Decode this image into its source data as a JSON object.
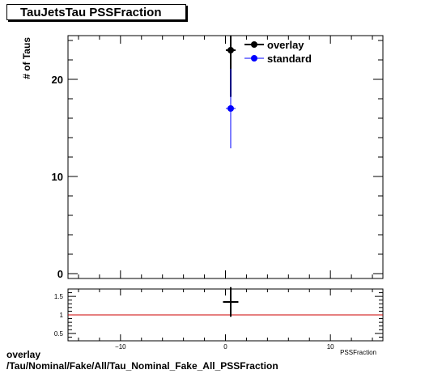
{
  "title": "TauJetsTau PSSFraction",
  "footer": {
    "line1": "overlay",
    "line2": "/Tau/Nominal/Fake/All/Tau_Nominal_Fake_All_PSSFraction"
  },
  "colors": {
    "overlay": "#000000",
    "standard": "#0000ff",
    "ratio_line": "#cc0000"
  },
  "chart_data": [
    {
      "type": "scatter",
      "title": "TauJetsTau PSSFraction",
      "ylabel": "# of Taus",
      "xlabel": "PSSFraction",
      "xlim": [
        -15,
        15
      ],
      "ylim": [
        -0.5,
        24.5
      ],
      "x_ticks": [
        -10,
        0,
        10
      ],
      "y_ticks": [
        0,
        10,
        20
      ],
      "legend_position": "top-right",
      "series": [
        {
          "name": "overlay",
          "x": [
            0.5
          ],
          "y": [
            23
          ],
          "yerr": [
            4.8
          ],
          "color": "#000000"
        },
        {
          "name": "standard",
          "x": [
            0.5
          ],
          "y": [
            17
          ],
          "yerr": [
            4.1
          ],
          "color": "#0000ff"
        }
      ]
    },
    {
      "type": "scatter",
      "xlim": [
        -15,
        15
      ],
      "ylim": [
        0.3,
        1.7
      ],
      "y_ticks": [
        0.5,
        1,
        1.5
      ],
      "y_tick_labels": [
        "0.5",
        "1",
        "1.5"
      ],
      "x_tick_labels": [
        "−10",
        "0",
        "10"
      ],
      "reference_line": 1,
      "series": [
        {
          "x": [
            0.5
          ],
          "y": [
            1.35
          ],
          "xerr": [
            0.5
          ],
          "yerr": [
            0.4
          ],
          "color": "#000000"
        }
      ]
    }
  ]
}
